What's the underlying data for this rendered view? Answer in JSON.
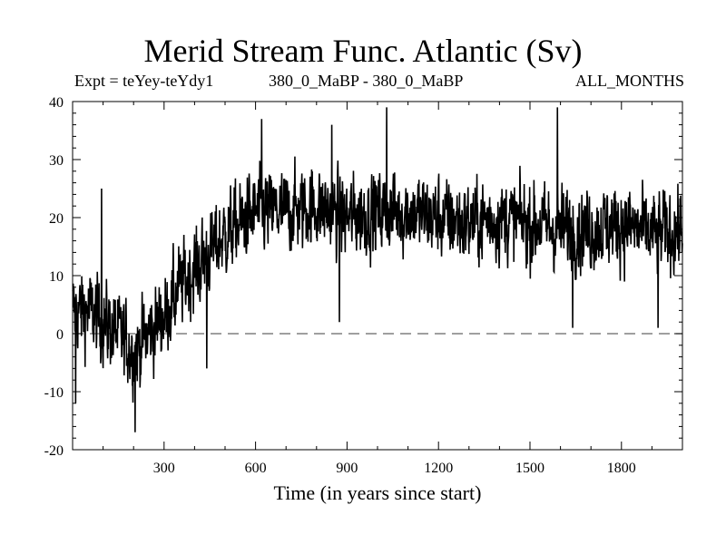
{
  "chart_data": {
    "type": "line",
    "title": "Merid Stream Func. Atlantic (Sv)",
    "annotations": {
      "experiment": "Expt = teYey-teYdy1",
      "comparison": "380_0_MaBP - 380_0_MaBP",
      "period": "ALL_MONTHS"
    },
    "xlabel": "Time (in years since start)",
    "ylabel": "",
    "xlim": [
      0,
      2000
    ],
    "ylim": [
      -20,
      40
    ],
    "xticks": [
      300,
      600,
      900,
      1200,
      1500,
      1800
    ],
    "yticks": [
      -20,
      -10,
      0,
      10,
      20,
      30,
      40
    ],
    "reference_line": {
      "y": 0,
      "style": "dashed"
    },
    "series": [
      {
        "name": "Merid Stream Func. Atlantic",
        "noise_amplitude": 6,
        "trend": [
          {
            "x": 0,
            "y": 4
          },
          {
            "x": 50,
            "y": 4
          },
          {
            "x": 100,
            "y": 2
          },
          {
            "x": 150,
            "y": 0
          },
          {
            "x": 200,
            "y": -3
          },
          {
            "x": 250,
            "y": 0
          },
          {
            "x": 300,
            "y": 3
          },
          {
            "x": 350,
            "y": 8
          },
          {
            "x": 400,
            "y": 11
          },
          {
            "x": 450,
            "y": 14
          },
          {
            "x": 500,
            "y": 17
          },
          {
            "x": 600,
            "y": 21
          },
          {
            "x": 700,
            "y": 21
          },
          {
            "x": 800,
            "y": 22
          },
          {
            "x": 900,
            "y": 20
          },
          {
            "x": 1000,
            "y": 21
          },
          {
            "x": 1100,
            "y": 21
          },
          {
            "x": 1200,
            "y": 20
          },
          {
            "x": 1300,
            "y": 19
          },
          {
            "x": 1400,
            "y": 20
          },
          {
            "x": 1500,
            "y": 19
          },
          {
            "x": 1600,
            "y": 18
          },
          {
            "x": 1700,
            "y": 18
          },
          {
            "x": 1800,
            "y": 19
          },
          {
            "x": 1900,
            "y": 17
          },
          {
            "x": 2000,
            "y": 18
          }
        ],
        "extremes": [
          {
            "x": 10,
            "y": -12
          },
          {
            "x": 95,
            "y": 25
          },
          {
            "x": 205,
            "y": -17
          },
          {
            "x": 440,
            "y": -6
          },
          {
            "x": 620,
            "y": 37
          },
          {
            "x": 850,
            "y": 36
          },
          {
            "x": 875,
            "y": 2
          },
          {
            "x": 1030,
            "y": 39
          },
          {
            "x": 1590,
            "y": 39
          },
          {
            "x": 1640,
            "y": 1
          },
          {
            "x": 1920,
            "y": 1
          }
        ]
      }
    ]
  }
}
